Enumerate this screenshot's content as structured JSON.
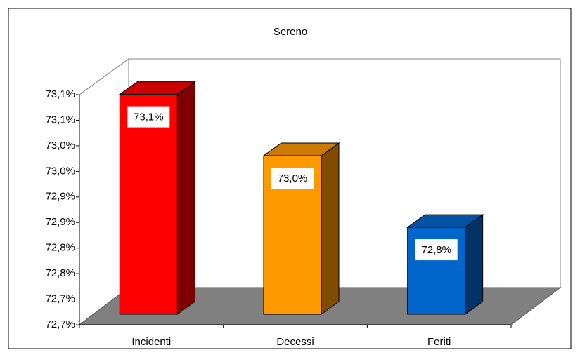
{
  "chart_data": {
    "type": "bar3d",
    "title": "Sereno",
    "categories": [
      "Incidenti",
      "Decessi",
      "Feriti"
    ],
    "values": [
      73.08,
      72.96,
      72.82
    ],
    "value_labels": [
      "73,1%",
      "73,0%",
      "72,8%"
    ],
    "colors": [
      "#ff0000",
      "#ff9900",
      "#0066cc"
    ],
    "ylim": [
      72.65,
      73.1
    ],
    "yticks": [
      {
        "value": 72.65,
        "label": "72,7%"
      },
      {
        "value": 72.7,
        "label": "72,7%"
      },
      {
        "value": 72.75,
        "label": "72,8%"
      },
      {
        "value": 72.8,
        "label": "72,8%"
      },
      {
        "value": 72.85,
        "label": "72,9%"
      },
      {
        "value": 72.9,
        "label": "72,9%"
      },
      {
        "value": 72.95,
        "label": "73,0%"
      },
      {
        "value": 73.0,
        "label": "73,0%"
      },
      {
        "value": 73.05,
        "label": "73,1%"
      },
      {
        "value": 73.1,
        "label": "73,1%"
      }
    ],
    "grid": false
  }
}
